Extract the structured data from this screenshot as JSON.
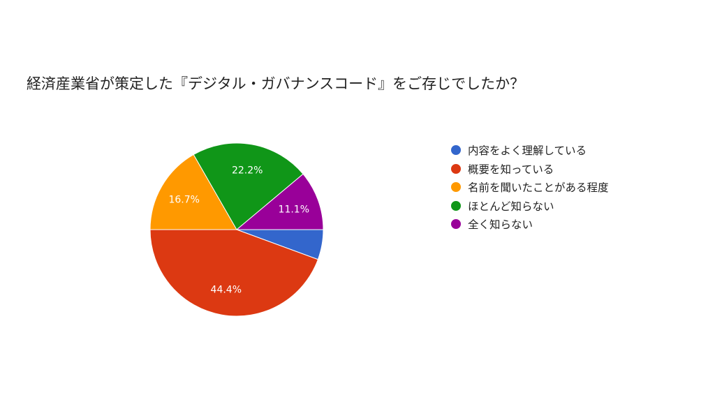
{
  "chart_data": {
    "type": "pie",
    "title": "経済産業省が策定した『デジタル・ガバナンスコード』をご存じでしたか？",
    "categories": [
      "内容をよく理解している",
      "概要を知っている",
      "名前を聞いたことがある程度",
      "ほとんど知らない",
      "全く知らない"
    ],
    "values": [
      5.6,
      44.4,
      16.7,
      22.2,
      11.1
    ],
    "data_labels": [
      "",
      "44.4%",
      "16.7%",
      "22.2%",
      "11.1%"
    ],
    "colors": [
      "#3366cc",
      "#dc3912",
      "#ff9900",
      "#109618",
      "#990099"
    ],
    "legend_position": "right",
    "start": "3 o'clock",
    "direction": "clockwise"
  }
}
